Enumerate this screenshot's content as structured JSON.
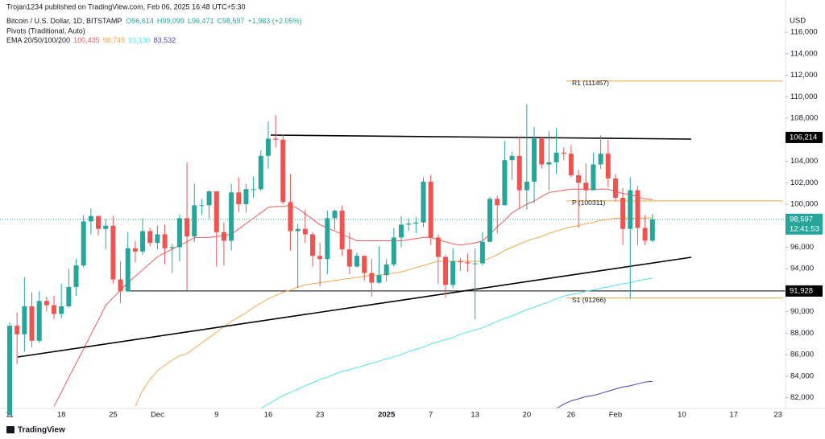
{
  "chart_data": {
    "type": "candlestick",
    "header": {
      "publisher": "Trojan1234 published on TradingView.com, Feb 06, 2025 16:48 UTC+5:30",
      "symbol": "Bitcoin / U.S. Dollar, 1D, BITSTAMP",
      "ohlc": [
        "O96,614",
        "H99,099",
        "L96,471",
        "C98,597"
      ],
      "change": "+1,983 (+2.05%)",
      "pivots_label": "Pivots (Traditional, Auto)",
      "ema_label": "EMA 20/50/100/200"
    },
    "currency": "USD",
    "brand": "TradingView",
    "up_color": "#26a69a",
    "down_color": "#ef5350",
    "categories": [
      "11",
      null,
      null,
      null,
      null,
      null,
      null,
      "18",
      null,
      null,
      null,
      null,
      null,
      null,
      "25",
      null,
      null,
      null,
      null,
      null,
      "Dec",
      null,
      null,
      null,
      null,
      null,
      null,
      null,
      "9",
      null,
      null,
      null,
      null,
      null,
      null,
      "16",
      null,
      null,
      null,
      null,
      null,
      null,
      "23",
      null,
      null,
      null,
      null,
      null,
      null,
      null,
      null,
      "2025",
      null,
      null,
      null,
      null,
      null,
      "7",
      null,
      null,
      null,
      null,
      null,
      "13",
      null,
      null,
      null,
      null,
      null,
      null,
      "20",
      null,
      null,
      null,
      null,
      null,
      "26",
      null,
      null,
      null,
      null,
      null,
      "Feb",
      null,
      null,
      null,
      null,
      null,
      null,
      null,
      null,
      "10",
      null,
      null,
      null,
      null,
      null,
      null,
      "17",
      null,
      null,
      null,
      null,
      null,
      "23"
    ],
    "open": [
      80400,
      88700,
      87900,
      90500,
      87300,
      91000,
      90600,
      89800,
      90500,
      92300,
      94300,
      98400,
      98900,
      97700,
      98000,
      93000,
      91900,
      95900,
      95600,
      97500,
      96400,
      97200,
      95900,
      96000,
      98700,
      97000,
      99900,
      99900,
      101200,
      97400,
      96600,
      101100,
      100000,
      101400,
      101400,
      104500,
      106100,
      106000,
      100200,
      97500,
      97700,
      97200,
      95200,
      94900,
      98700,
      99400,
      95800,
      94200,
      95200,
      93600,
      92700,
      93400,
      94400,
      96900,
      98100,
      98200,
      98300,
      102100,
      96900,
      95100,
      92500,
      94700,
      94600,
      94500,
      94500,
      96500,
      100500,
      99900,
      104100,
      104500,
      101300,
      102100,
      106100,
      103700,
      103900,
      104800,
      104700,
      102700,
      102000,
      101300,
      103700,
      104700,
      102400,
      100600,
      97700,
      101300,
      97800,
      96614,
      null,
      null,
      null,
      null,
      null,
      null,
      null,
      null,
      null,
      null,
      null,
      null,
      null,
      null,
      null,
      null,
      null
    ],
    "high": [
      89000,
      89900,
      93200,
      91800,
      91900,
      91400,
      91500,
      92600,
      94000,
      94900,
      99000,
      99600,
      98900,
      98600,
      98900,
      94700,
      97400,
      96600,
      98700,
      97800,
      98000,
      98100,
      96300,
      99000,
      103900,
      101900,
      100500,
      101300,
      101200,
      98300,
      101900,
      102500,
      101900,
      102600,
      105000,
      107700,
      108300,
      106500,
      102800,
      98200,
      99500,
      97400,
      96400,
      99400,
      99500,
      99900,
      97400,
      95500,
      95200,
      94900,
      96100,
      94900,
      97800,
      98900,
      98700,
      98800,
      102500,
      102700,
      97200,
      95300,
      95900,
      95000,
      95400,
      95900,
      97400,
      100700,
      100800,
      105900,
      104900,
      106300,
      109300,
      107200,
      106300,
      106800,
      107100,
      105300,
      105500,
      103200,
      103800,
      104800,
      106400,
      106000,
      102800,
      101500,
      102500,
      101700,
      99000,
      99099,
      null,
      null,
      null,
      null,
      null,
      null,
      null,
      null,
      null,
      null,
      null,
      null,
      null,
      null,
      null,
      null,
      null
    ],
    "low": [
      80200,
      85100,
      86300,
      86700,
      87100,
      90000,
      89300,
      89400,
      90400,
      91500,
      94100,
      97200,
      97100,
      95800,
      92600,
      90800,
      91800,
      94600,
      95300,
      96100,
      95800,
      94400,
      93600,
      94700,
      92000,
      96500,
      99000,
      98700,
      94200,
      94300,
      95700,
      99300,
      99200,
      100600,
      101200,
      103300,
      105300,
      100000,
      95700,
      92200,
      96400,
      94200,
      92400,
      93500,
      97600,
      95200,
      93500,
      94100,
      92900,
      91400,
      92600,
      92800,
      94200,
      96000,
      97500,
      97300,
      97900,
      96200,
      92600,
      91300,
      92200,
      93800,
      93700,
      89300,
      94300,
      96500,
      97300,
      99900,
      102300,
      99600,
      99500,
      100100,
      103300,
      101300,
      102800,
      104100,
      102500,
      97800,
      100300,
      101300,
      103300,
      101600,
      100300,
      96200,
      91200,
      96200,
      96200,
      96471,
      null,
      null,
      null,
      null,
      null,
      null,
      null,
      null,
      null,
      null,
      null,
      null,
      null,
      null,
      null,
      null,
      null
    ],
    "close": [
      88700,
      87900,
      90500,
      87300,
      91000,
      90600,
      89800,
      90500,
      92300,
      94300,
      98400,
      98900,
      97700,
      98000,
      93000,
      91900,
      95900,
      95600,
      97500,
      96400,
      97200,
      95900,
      96000,
      98700,
      97000,
      99900,
      99900,
      101200,
      97400,
      96600,
      101100,
      100000,
      101400,
      101400,
      104500,
      106100,
      106000,
      100200,
      97500,
      97700,
      97200,
      95200,
      94900,
      98700,
      99400,
      95800,
      94200,
      95200,
      93600,
      92700,
      93400,
      94400,
      96900,
      98100,
      98200,
      98300,
      102100,
      96900,
      95100,
      92500,
      94700,
      94600,
      94500,
      94500,
      96500,
      100500,
      99900,
      104100,
      104500,
      101300,
      102100,
      106100,
      103700,
      103900,
      104800,
      104700,
      102700,
      102000,
      101300,
      103700,
      104700,
      102400,
      100600,
      97700,
      101300,
      97800,
      96614,
      98597,
      null,
      null,
      null,
      null,
      null,
      null,
      null,
      null,
      null,
      null,
      null,
      null,
      null,
      null,
      null,
      null,
      null
    ],
    "series": [
      {
        "color": "#f05a5f",
        "last_label": "100,435",
        "values": [
          null,
          null,
          null,
          null,
          null,
          null,
          81200,
          82500,
          83900,
          85200,
          86500,
          87900,
          89200,
          90600,
          91300,
          92000,
          92700,
          93300,
          93900,
          94500,
          95100,
          95500,
          95800,
          96200,
          96500,
          96900,
          96900,
          96900,
          97000,
          97100,
          97200,
          97700,
          98200,
          98700,
          99200,
          99700,
          99800,
          99800,
          99900,
          99600,
          99100,
          98600,
          98100,
          97800,
          97500,
          97200,
          96900,
          96600,
          96600,
          96600,
          96600,
          96600,
          96600,
          96600,
          96700,
          96800,
          96900,
          96900,
          96700,
          96500,
          96300,
          96200,
          96300,
          96400,
          96600,
          97200,
          97900,
          98500,
          99200,
          99600,
          100000,
          100300,
          100700,
          101100,
          101200,
          101300,
          101400,
          101400,
          101400,
          101400,
          101400,
          101400,
          101200,
          101000,
          100900,
          100700,
          100500,
          100435,
          null,
          null,
          null,
          null,
          null,
          null,
          null,
          null,
          null,
          null,
          null,
          null,
          null,
          null,
          null,
          null,
          null
        ]
      },
      {
        "color": "#f5a54e",
        "last_label": "98,749",
        "values": [
          null,
          null,
          null,
          null,
          null,
          null,
          null,
          null,
          null,
          null,
          null,
          null,
          null,
          null,
          null,
          null,
          null,
          81200,
          82700,
          83700,
          84500,
          85000,
          85500,
          85900,
          86100,
          86600,
          87100,
          87600,
          88100,
          88600,
          89100,
          89500,
          89900,
          90400,
          90800,
          91200,
          91500,
          91800,
          92000,
          92300,
          92500,
          92600,
          92700,
          92800,
          92900,
          93000,
          93100,
          93200,
          93300,
          93400,
          93400,
          93500,
          93600,
          93700,
          93900,
          94100,
          94300,
          94500,
          94700,
          94700,
          94700,
          94700,
          94700,
          94700,
          94700,
          95000,
          95300,
          95700,
          96000,
          96300,
          96600,
          96800,
          97000,
          97300,
          97500,
          97700,
          97900,
          98000,
          98200,
          98300,
          98500,
          98600,
          98700,
          98700,
          98700,
          98700,
          98700,
          98749,
          null,
          null,
          null,
          null,
          null,
          null,
          null,
          null,
          null,
          null,
          null,
          null,
          null,
          null,
          null,
          null,
          null
        ]
      },
      {
        "color": "#4fe3ef",
        "last_label": "93,130",
        "values": [
          null,
          null,
          null,
          null,
          null,
          null,
          null,
          null,
          null,
          null,
          null,
          null,
          null,
          null,
          null,
          null,
          null,
          null,
          null,
          null,
          null,
          null,
          null,
          null,
          null,
          null,
          null,
          null,
          null,
          null,
          null,
          null,
          null,
          null,
          81000,
          81400,
          81800,
          82200,
          82500,
          82800,
          83100,
          83400,
          83700,
          83900,
          84200,
          84450,
          84600,
          84800,
          85000,
          85200,
          85400,
          85600,
          85800,
          86000,
          86300,
          86500,
          86700,
          87000,
          87200,
          87400,
          87600,
          87900,
          88100,
          88300,
          88500,
          88800,
          89100,
          89400,
          89600,
          89900,
          90200,
          90400,
          90700,
          90900,
          91200,
          91450,
          91600,
          91700,
          91900,
          92000,
          92200,
          92300,
          92450,
          92600,
          92700,
          92900,
          93000,
          93130,
          null,
          null,
          null,
          null,
          null,
          null,
          null,
          null,
          null,
          null,
          null,
          null,
          null,
          null,
          null,
          null,
          null
        ]
      },
      {
        "color": "#4b3fb3",
        "last_label": "83,532",
        "values": [
          null,
          null,
          null,
          null,
          null,
          null,
          null,
          null,
          null,
          null,
          null,
          null,
          null,
          null,
          null,
          null,
          null,
          null,
          null,
          null,
          null,
          null,
          null,
          null,
          null,
          null,
          null,
          null,
          null,
          null,
          null,
          null,
          null,
          null,
          null,
          null,
          null,
          null,
          null,
          null,
          null,
          null,
          null,
          null,
          null,
          null,
          null,
          null,
          null,
          null,
          null,
          null,
          null,
          null,
          null,
          null,
          null,
          null,
          null,
          null,
          null,
          null,
          null,
          null,
          null,
          null,
          null,
          null,
          null,
          null,
          null,
          null,
          null,
          null,
          81000,
          81400,
          81700,
          81900,
          82100,
          82200,
          82400,
          82600,
          82800,
          83000,
          83100,
          83300,
          83450,
          83532,
          null,
          null,
          null,
          null,
          null,
          null,
          null,
          null,
          null,
          null,
          null,
          null,
          null,
          null,
          null,
          null,
          null
        ]
      }
    ],
    "pivots": [
      {
        "label": "R1 (111457)",
        "value": 111457
      },
      {
        "label": "P (100311)",
        "value": 100311
      },
      {
        "label": "S1 (91266)",
        "value": 91266
      }
    ],
    "pivot_color": "#f0a23a",
    "levels": [
      {
        "value": 106214,
        "label": "106,214"
      },
      {
        "value": 91928,
        "label": "91,928"
      }
    ],
    "last_price": {
      "value": 98597,
      "label": "98,597",
      "countdown": "12:41:53"
    },
    "ylim": [
      81000,
      119000
    ],
    "yticks": [
      {
        "value": 82000,
        "label": "82,000"
      },
      {
        "value": 84000,
        "label": "84,000"
      },
      {
        "value": 86000,
        "label": "86,000"
      },
      {
        "value": 88000,
        "label": "88,000"
      },
      {
        "value": 90000,
        "label": "90,000"
      },
      {
        "value": 92000,
        "label": "92,000"
      },
      {
        "value": 94000,
        "label": "94,000"
      },
      {
        "value": 96000,
        "label": "96,000"
      },
      {
        "value": 98000,
        "label": "98,000"
      },
      {
        "value": 100000,
        "label": "100,000"
      },
      {
        "value": 102000,
        "label": "102,000"
      },
      {
        "value": 104000,
        "label": "104,000"
      },
      {
        "value": 106000,
        "label": "106,000"
      },
      {
        "value": 108000,
        "label": "108,000"
      },
      {
        "value": 110000,
        "label": "110,000"
      },
      {
        "value": 112000,
        "label": "112,000"
      },
      {
        "value": 114000,
        "label": "114,000"
      },
      {
        "value": 116000,
        "label": "116,000"
      }
    ]
  }
}
